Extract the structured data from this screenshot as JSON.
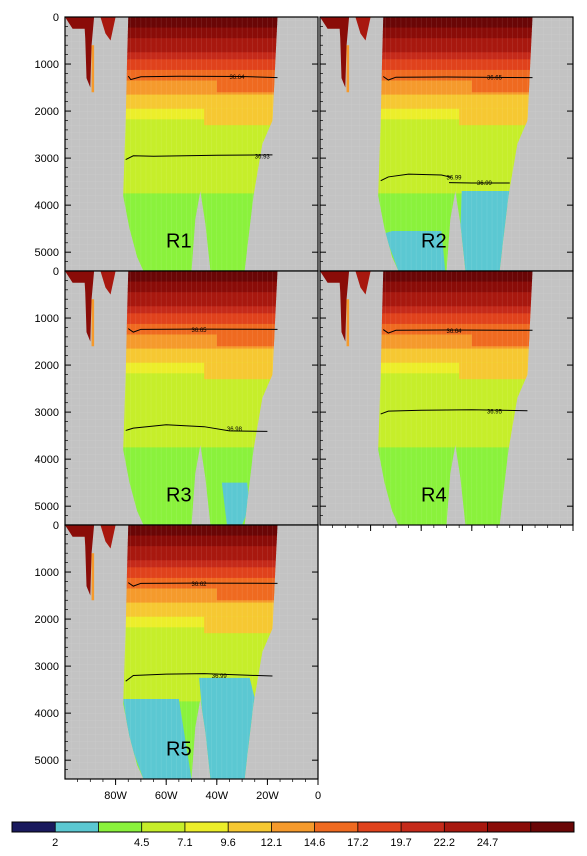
{
  "chart_data": {
    "type": "heatmap",
    "depth_ticks": [
      0,
      1000,
      2000,
      3000,
      4000,
      5000
    ],
    "depth_range": [
      0,
      5400
    ],
    "lon_ticks": [
      "80W",
      "60W",
      "40W",
      "20W",
      "0"
    ],
    "lon_range": [
      -100,
      0
    ],
    "colorbar": {
      "labels": [
        "2",
        "4.5",
        "7.1",
        "9.6",
        "12.1",
        "14.6",
        "17.2",
        "19.7",
        "22.2",
        "24.7"
      ],
      "colors": [
        "#1a1a5e",
        "#5bc8d2",
        "#8af23c",
        "#c6ee2a",
        "#ecee2a",
        "#f6c832",
        "#f59a2c",
        "#ef6a20",
        "#e0421c",
        "#c52a1a",
        "#a8180f",
        "#8a0c08",
        "#6a0606"
      ]
    },
    "panels": [
      {
        "label": "R1",
        "contours": [
          {
            "label": "36.64",
            "depth": 1270
          },
          {
            "label": "36.93",
            "depth": 2950
          }
        ],
        "bottom_water": []
      },
      {
        "label": "R2",
        "contours": [
          {
            "label": "36.65",
            "depth": 1280
          },
          {
            "label": "36.99",
            "depth": 3400
          },
          {
            "label": "36.99",
            "depth": 3520
          }
        ],
        "bottom_water": [
          "west",
          "east"
        ]
      },
      {
        "label": "R3",
        "contours": [
          {
            "label": "36.65",
            "depth": 1240
          },
          {
            "label": "36.98",
            "depth": 3350
          }
        ],
        "bottom_water": [
          "east-small"
        ]
      },
      {
        "label": "R4",
        "contours": [
          {
            "label": "36.64",
            "depth": 1260
          },
          {
            "label": "36.95",
            "depth": 2980
          }
        ],
        "bottom_water": []
      },
      {
        "label": "R5",
        "contours": [
          {
            "label": "36.62",
            "depth": 1240
          },
          {
            "label": "36.99",
            "depth": 3200
          }
        ],
        "bottom_water": [
          "west-large",
          "east-large"
        ]
      }
    ]
  }
}
